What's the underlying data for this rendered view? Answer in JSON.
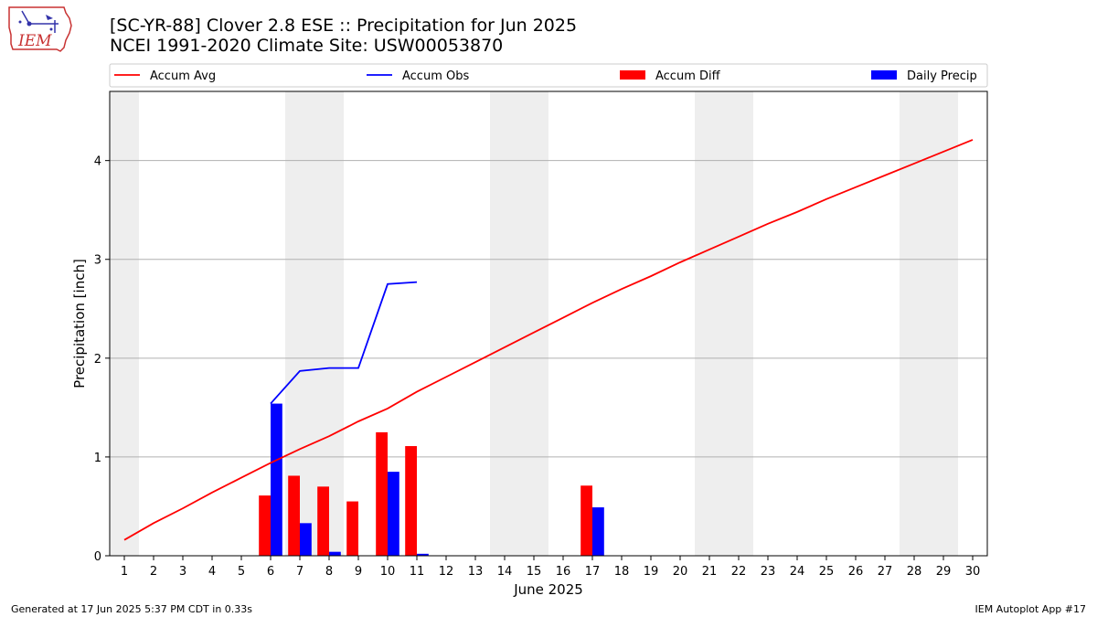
{
  "logo": {
    "text": "IEM"
  },
  "header": {
    "title": "[SC-YR-88] Clover 2.8 ESE :: Precipitation for Jun 2025",
    "subtitle": "NCEI 1991-2020 Climate Site: USW00053870"
  },
  "footer": {
    "generated": "Generated at 17 Jun 2025 5:37 PM CDT in 0.33s",
    "app": "IEM Autoplot App #17"
  },
  "colors": {
    "accum_avg": "#ff0000",
    "accum_obs": "#0000ff",
    "accum_diff": "#ff0000",
    "daily_precip": "#0000ff",
    "weekend_shade": "#eeeeee",
    "grid": "#b0b0b0"
  },
  "chart_data": {
    "type": "bar",
    "xlabel": "June 2025",
    "ylabel": "Precipitation [inch]",
    "x": [
      1,
      2,
      3,
      4,
      5,
      6,
      7,
      8,
      9,
      10,
      11,
      12,
      13,
      14,
      15,
      16,
      17,
      18,
      19,
      20,
      21,
      22,
      23,
      24,
      25,
      26,
      27,
      28,
      29,
      30
    ],
    "xlim": [
      0.5,
      30.5
    ],
    "ylim": [
      0,
      4.7
    ],
    "yticks": [
      0,
      1,
      2,
      3,
      4
    ],
    "grid": "horizontal",
    "legend_position": "top",
    "weekend_days": [
      1,
      7,
      8,
      14,
      15,
      21,
      22,
      28,
      29
    ],
    "series": [
      {
        "name": "Accum Avg",
        "type": "line",
        "values": [
          0.16,
          0.33,
          0.48,
          0.64,
          0.79,
          0.94,
          1.08,
          1.21,
          1.36,
          1.49,
          1.66,
          1.81,
          1.96,
          2.11,
          2.26,
          2.41,
          2.56,
          2.7,
          2.83,
          2.97,
          3.1,
          3.23,
          3.36,
          3.48,
          3.61,
          3.73,
          3.85,
          3.97,
          4.09,
          4.21
        ]
      },
      {
        "name": "Accum Obs",
        "type": "line",
        "values": [
          null,
          null,
          null,
          null,
          null,
          1.54,
          1.87,
          1.9,
          1.9,
          2.75,
          2.77,
          null,
          null,
          null,
          null,
          null,
          null,
          null,
          null,
          null,
          null,
          null,
          null,
          null,
          null,
          null,
          null,
          null,
          null,
          null
        ]
      },
      {
        "name": "Accum Diff",
        "type": "bar",
        "values": [
          null,
          null,
          null,
          null,
          null,
          0.61,
          0.81,
          0.7,
          0.55,
          1.25,
          1.11,
          null,
          null,
          null,
          null,
          null,
          0.71,
          null,
          null,
          null,
          null,
          null,
          null,
          null,
          null,
          null,
          null,
          null,
          null,
          null
        ]
      },
      {
        "name": "Daily Precip",
        "type": "bar",
        "values": [
          0,
          0,
          0,
          0,
          0,
          1.54,
          0.33,
          0.04,
          0,
          0.85,
          0.02,
          0,
          0,
          0,
          0,
          0,
          0.49,
          0,
          0,
          0,
          0,
          0,
          0,
          0,
          0,
          0,
          0,
          0,
          0,
          0
        ]
      }
    ]
  }
}
